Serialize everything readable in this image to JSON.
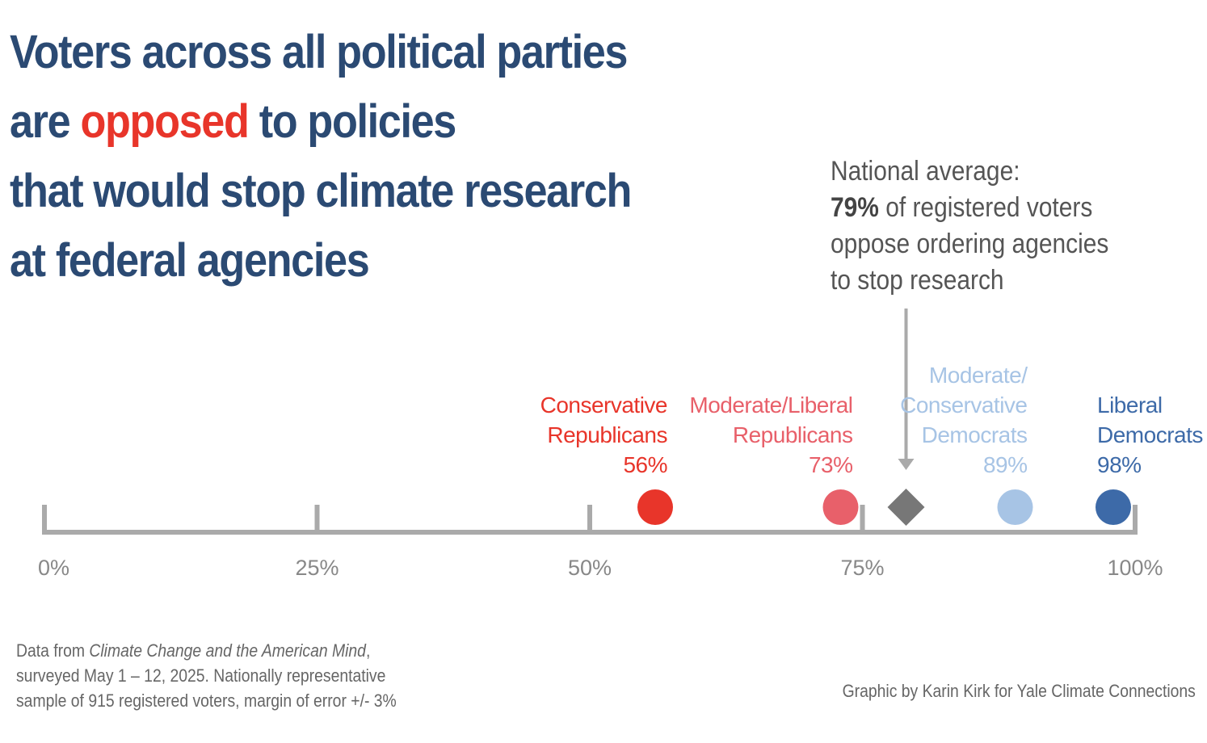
{
  "title": {
    "line1": "Voters across all political parties",
    "line2_pre": "are ",
    "line2_highlight": "opposed",
    "line2_post": " to policies",
    "line3": "that would stop climate research",
    "line4": "at federal agencies"
  },
  "annotation": {
    "line1": "National average:",
    "line2_bold": "79%",
    "line2_rest": " of registered voters",
    "line3": "oppose ordering agencies",
    "line4": "to stop research"
  },
  "colors": {
    "title": "#2b4a73",
    "highlight": "#e8352a",
    "axis": "#aaaaaa",
    "national_marker": "#777777"
  },
  "chart_data": {
    "type": "scatter",
    "xlim": [
      0,
      100
    ],
    "x_ticks": [
      {
        "value": 0,
        "label": "0%"
      },
      {
        "value": 25,
        "label": "25%"
      },
      {
        "value": 50,
        "label": "50%"
      },
      {
        "value": 75,
        "label": "75%"
      },
      {
        "value": 100,
        "label": "100%"
      }
    ],
    "series": [
      {
        "name_lines": [
          "Conservative",
          "Republicans"
        ],
        "value": 56,
        "value_label": "56%",
        "color": "#e8352a",
        "label_align": "end"
      },
      {
        "name_lines": [
          "Moderate/Liberal",
          "Republicans"
        ],
        "value": 73,
        "value_label": "73%",
        "color": "#e8606a",
        "label_align": "end"
      },
      {
        "name_lines": [
          "Moderate/",
          "Conservative",
          "Democrats"
        ],
        "value": 89,
        "value_label": "89%",
        "color": "#a7c4e5",
        "label_align": "end"
      },
      {
        "name_lines": [
          "Liberal",
          "Democrats"
        ],
        "value": 98,
        "value_label": "98%",
        "color": "#3d6aa8",
        "label_align": "start"
      }
    ],
    "reference": {
      "value": 79,
      "marker": "diamond",
      "color": "#777777"
    },
    "grid": false
  },
  "footnote": {
    "line1_pre": "Data from ",
    "line1_italic": "Climate Change and the American Mind",
    "line1_post": ",",
    "line2": "surveyed May 1 – 12, 2025. Nationally representative",
    "line3": "sample of 915 registered voters, margin of error +/- 3%"
  },
  "credit": "Graphic by Karin Kirk for Yale Climate Connections"
}
